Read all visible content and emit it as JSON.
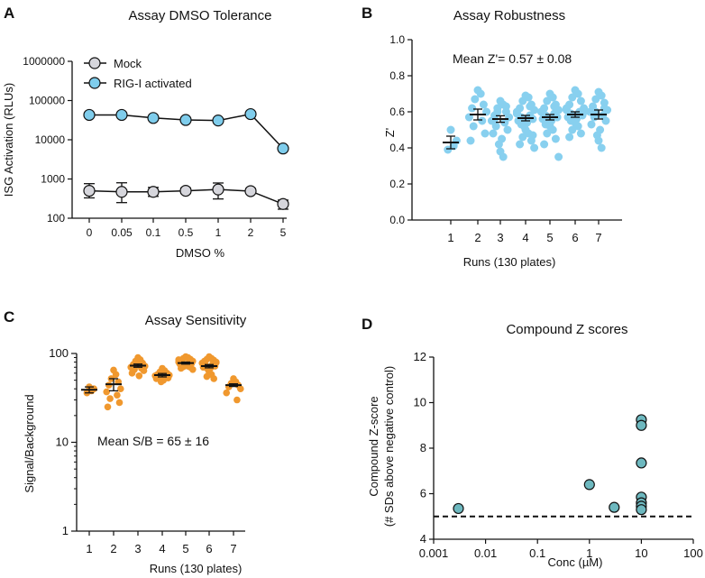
{
  "chart_data": [
    {
      "panel": "A",
      "type": "line",
      "title": "Assay DMSO Tolerance",
      "xlabel": "DMSO %",
      "ylabel": "ISG Activation (RLUs)",
      "yscale": "log",
      "ylim": [
        100,
        1000000
      ],
      "categories": [
        "0",
        "0.05",
        "0.1",
        "0.5",
        "1",
        "2",
        "5"
      ],
      "yticks": [
        100,
        1000,
        10000,
        100000,
        1000000
      ],
      "ytick_labels": [
        "100",
        "1000",
        "10000",
        "100000",
        "1000000"
      ],
      "legend_position": "top-left",
      "series": [
        {
          "name": "Mock",
          "color": "#d6d6dc",
          "values": [
            500,
            470,
            470,
            500,
            540,
            490,
            230
          ],
          "err_low": [
            330,
            250,
            360,
            430,
            310,
            430,
            170
          ],
          "err_high": [
            760,
            800,
            610,
            590,
            790,
            570,
            290
          ]
        },
        {
          "name": "RIG-I activated",
          "color": "#7fcdec",
          "values": [
            43000,
            43000,
            36000,
            32000,
            31000,
            45000,
            6000
          ]
        }
      ]
    },
    {
      "panel": "B",
      "type": "scatter",
      "title": "Assay Robustness",
      "xlabel": "Runs (130 plates)",
      "ylabel": "Z'",
      "ylim": [
        0,
        1.0
      ],
      "yticks": [
        0,
        0.2,
        0.4,
        0.6,
        0.8,
        1.0
      ],
      "ytick_labels": [
        "0.0",
        "0.2",
        "0.4",
        "0.6",
        "0.8",
        "1.0"
      ],
      "categories": [
        "1",
        "2",
        "3",
        "4",
        "5",
        "6",
        "7"
      ],
      "annotation": "Mean Z'= 0.57 ± 0.08",
      "color": "#88d0ef",
      "means": [
        0.43,
        0.585,
        0.56,
        0.565,
        0.57,
        0.585,
        0.585
      ],
      "sem": [
        0.035,
        0.03,
        0.018,
        0.015,
        0.015,
        0.015,
        0.025
      ],
      "points": [
        [
          0.5,
          0.41,
          0.39,
          0.44
        ],
        [
          0.72,
          0.7,
          0.67,
          0.64,
          0.62,
          0.6,
          0.57,
          0.55,
          0.52,
          0.48,
          0.44
        ],
        [
          0.66,
          0.64,
          0.62,
          0.6,
          0.58,
          0.57,
          0.55,
          0.54,
          0.52,
          0.5,
          0.48,
          0.45,
          0.42,
          0.38,
          0.35,
          0.6,
          0.63,
          0.56
        ],
        [
          0.69,
          0.68,
          0.66,
          0.64,
          0.62,
          0.61,
          0.6,
          0.58,
          0.57,
          0.56,
          0.55,
          0.54,
          0.52,
          0.5,
          0.48,
          0.46,
          0.44,
          0.42,
          0.4,
          0.59,
          0.63,
          0.53,
          0.47
        ],
        [
          0.7,
          0.68,
          0.66,
          0.64,
          0.62,
          0.61,
          0.6,
          0.59,
          0.58,
          0.57,
          0.56,
          0.55,
          0.54,
          0.52,
          0.5,
          0.48,
          0.45,
          0.42,
          0.35,
          0.6,
          0.63,
          0.53,
          0.57
        ],
        [
          0.72,
          0.7,
          0.68,
          0.66,
          0.64,
          0.62,
          0.61,
          0.6,
          0.59,
          0.58,
          0.57,
          0.56,
          0.55,
          0.54,
          0.52,
          0.5,
          0.48,
          0.46,
          0.6,
          0.62,
          0.58,
          0.55
        ],
        [
          0.71,
          0.69,
          0.67,
          0.65,
          0.63,
          0.61,
          0.6,
          0.58,
          0.57,
          0.55,
          0.53,
          0.5,
          0.47,
          0.44,
          0.4,
          0.6,
          0.62
        ]
      ]
    },
    {
      "panel": "C",
      "type": "scatter",
      "title": "Assay Sensitivity",
      "xlabel": "Runs (130 plates)",
      "ylabel": "Signal/Background",
      "yscale": "log",
      "ylim": [
        1,
        100
      ],
      "yticks": [
        1,
        10,
        100
      ],
      "ytick_labels": [
        "1",
        "10",
        "100"
      ],
      "categories": [
        "1",
        "2",
        "3",
        "4",
        "5",
        "6",
        "7"
      ],
      "annotation": "Mean S/B = 65 ± 16",
      "color": "#f0982e",
      "means": [
        39,
        45,
        73,
        57,
        78,
        72,
        44
      ],
      "sem": [
        3,
        7,
        3,
        2.5,
        2,
        3,
        1.5
      ],
      "points": [
        [
          42,
          38,
          36,
          40
        ],
        [
          65,
          58,
          52,
          48,
          44,
          40,
          37,
          34,
          31,
          28,
          25
        ],
        [
          90,
          85,
          82,
          78,
          75,
          72,
          70,
          68,
          66,
          64,
          60,
          56,
          80,
          74
        ],
        [
          68,
          64,
          62,
          60,
          58,
          57,
          56,
          55,
          54,
          53,
          52,
          50,
          48,
          61,
          59
        ],
        [
          92,
          90,
          88,
          86,
          84,
          82,
          80,
          79,
          78,
          77,
          76,
          75,
          74,
          73,
          72,
          71,
          70,
          68,
          66,
          85,
          81,
          77
        ],
        [
          92,
          88,
          86,
          84,
          82,
          80,
          78,
          76,
          74,
          72,
          70,
          68,
          66,
          62,
          58,
          55,
          52,
          75,
          79
        ],
        [
          52,
          48,
          46,
          44,
          42,
          40,
          36,
          30
        ]
      ]
    },
    {
      "panel": "D",
      "type": "scatter",
      "title": "Compound Z scores",
      "xlabel": "Conc (µM)",
      "ylabel": "Compound Z-score",
      "ylabel2": "(# SDs above negative control)",
      "xscale": "log",
      "xlim": [
        0.001,
        100
      ],
      "ylim": [
        4,
        12
      ],
      "xticks": [
        0.001,
        0.01,
        0.1,
        1,
        10,
        100
      ],
      "xtick_labels": [
        "0.001",
        "0.01",
        "0.1",
        "1",
        "10",
        "100"
      ],
      "yticks": [
        4,
        6,
        8,
        10,
        12
      ],
      "ytick_labels": [
        "4",
        "6",
        "8",
        "10",
        "12"
      ],
      "threshold": 5,
      "color": "#6db8bf",
      "x": [
        0.003,
        1,
        3,
        10,
        10,
        10,
        10,
        10,
        10,
        10
      ],
      "y": [
        5.35,
        6.4,
        5.4,
        9.25,
        9.0,
        7.35,
        5.85,
        5.6,
        5.45,
        5.3
      ]
    }
  ]
}
